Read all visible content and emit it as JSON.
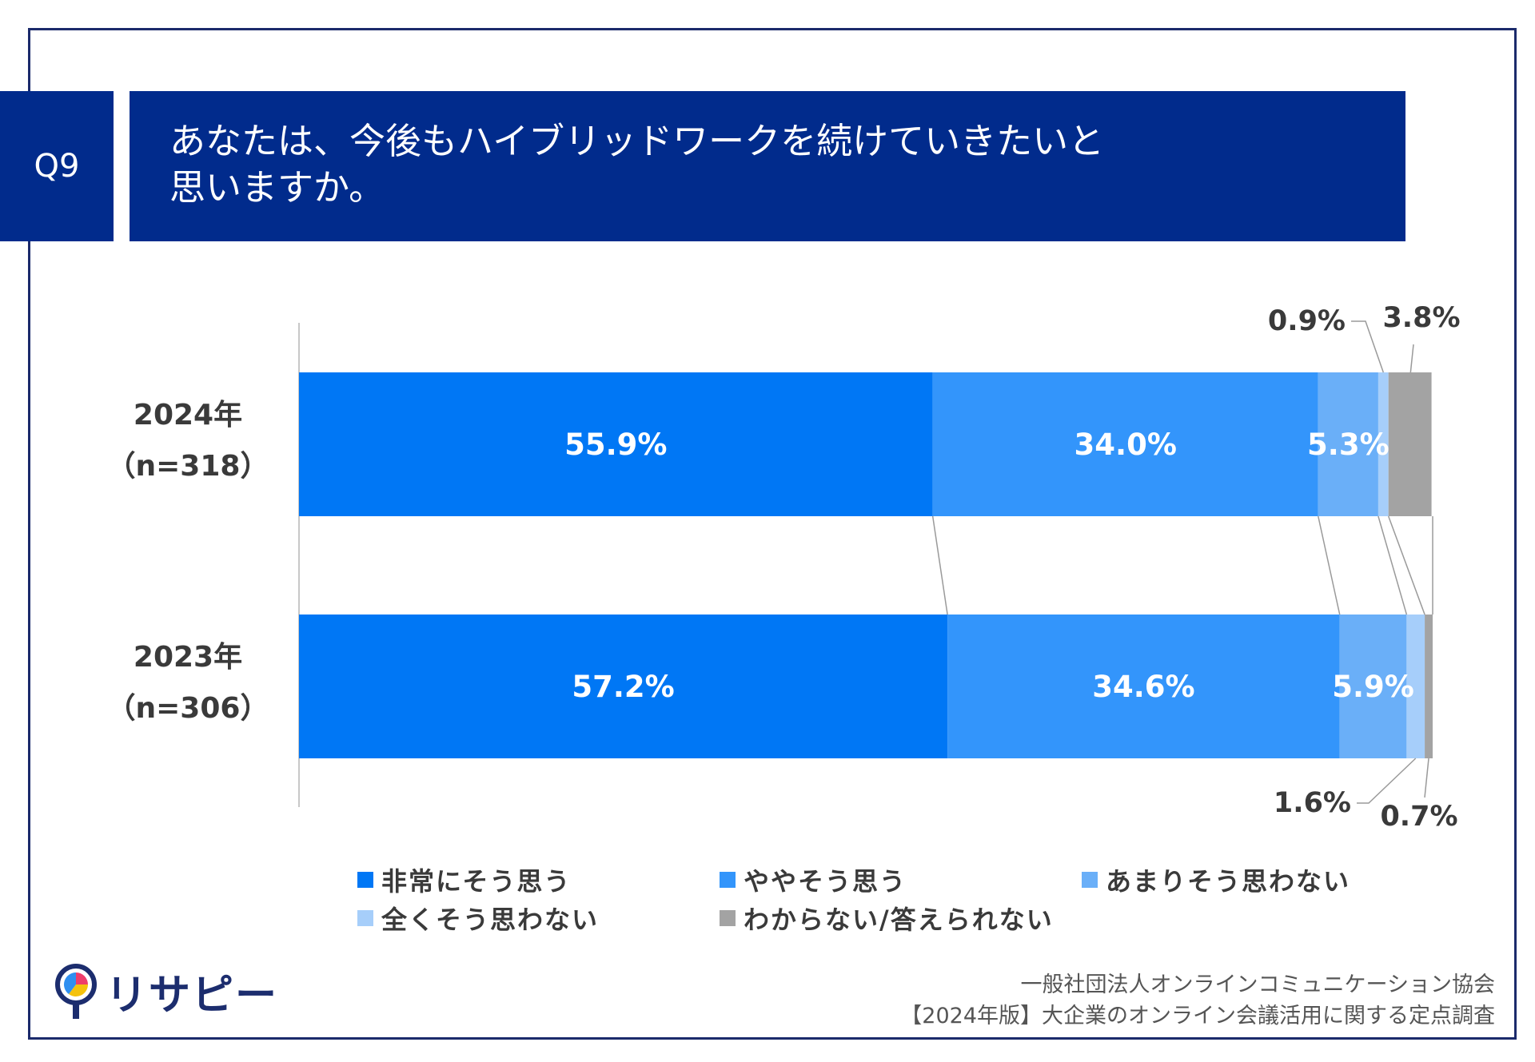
{
  "header": {
    "question_id": "Q9",
    "title_line1": "あなたは、今後もハイブリッドワークを続けていきたいと",
    "title_line2": "思いますか。"
  },
  "colors": {
    "header_bg": "#012b8c",
    "series": [
      "#0077f5",
      "#3395fb",
      "#6aaff8",
      "#a6cefa",
      "#a3a3a3"
    ]
  },
  "chart_data": {
    "type": "bar",
    "orientation": "horizontal",
    "stacked": "100%",
    "categories": [
      {
        "year": "2024年",
        "n": "（n=318）"
      },
      {
        "year": "2023年",
        "n": "（n=306）"
      }
    ],
    "series": [
      {
        "name": "非常にそう思う",
        "values": [
          55.9,
          57.2
        ],
        "labels": [
          "55.9%",
          "57.2%"
        ]
      },
      {
        "name": "ややそう思う",
        "values": [
          34.0,
          34.6
        ],
        "labels": [
          "34.0%",
          "34.6%"
        ]
      },
      {
        "name": "あまりそう思わない",
        "values": [
          5.3,
          5.9
        ],
        "labels": [
          "5.3%",
          "5.9%"
        ]
      },
      {
        "name": "全くそう思わない",
        "values": [
          0.9,
          1.6
        ],
        "labels": [
          "0.9%",
          "1.6%"
        ]
      },
      {
        "name": "わからない/答えられない",
        "values": [
          3.8,
          0.7
        ],
        "labels": [
          "3.8%",
          "0.7%"
        ]
      }
    ],
    "xlim": [
      0,
      100
    ],
    "legend_position": "bottom"
  },
  "footer": {
    "logo_text": "リサピー",
    "source_line1": "一般社団法人オンラインコミュニケーション協会",
    "source_line2": "【2024年版】大企業のオンライン会議活用に関する定点調査"
  }
}
